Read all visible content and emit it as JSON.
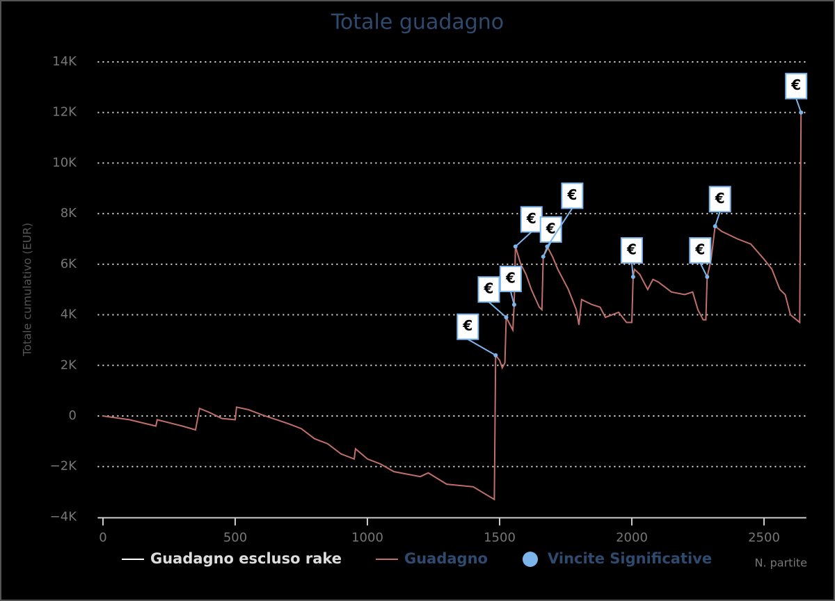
{
  "chart_data": {
    "type": "line",
    "title": "Totale guadagno",
    "x_label": "N. partite",
    "y_label": "Totale cumulativo (EUR)",
    "xlim": [
      -20,
      2660
    ],
    "xticks": [
      0,
      500,
      1000,
      1500,
      2000,
      2500
    ],
    "ylim": [
      -4000,
      14000
    ],
    "yticks": [
      {
        "value": -4000,
        "label": "−4K"
      },
      {
        "value": -2000,
        "label": "−2K"
      },
      0,
      {
        "value": 2000,
        "label": "2K"
      },
      {
        "value": 4000,
        "label": "4K"
      },
      {
        "value": 6000,
        "label": "6K"
      },
      {
        "value": 8000,
        "label": "8K"
      },
      {
        "value": 10000,
        "label": "10K"
      },
      {
        "value": 12000,
        "label": "12K"
      },
      {
        "value": 14000,
        "label": "14K"
      }
    ],
    "grid": true,
    "flag_label": "€",
    "series": [
      {
        "name": "Guadagno escluso rake",
        "color": "#ffffff"
      },
      {
        "name": "Guadagno",
        "color": "#c0706a",
        "x": [
          0,
          100,
          200,
          205,
          300,
          350,
          365,
          400,
          450,
          500,
          505,
          550,
          600,
          700,
          750,
          800,
          850,
          900,
          950,
          955,
          1000,
          1050,
          1100,
          1200,
          1230,
          1300,
          1400,
          1480,
          1485,
          1500,
          1510,
          1520,
          1525,
          1540,
          1550,
          1555,
          1560,
          1580,
          1600,
          1620,
          1650,
          1660,
          1665,
          1680,
          1700,
          1720,
          1760,
          1790,
          1800,
          1810,
          1850,
          1880,
          1900,
          1950,
          1980,
          2000,
          2005,
          2010,
          2030,
          2060,
          2080,
          2100,
          2150,
          2200,
          2230,
          2250,
          2270,
          2280,
          2285,
          2300,
          2315,
          2340,
          2400,
          2450,
          2500,
          2530,
          2560,
          2580,
          2600,
          2635,
          2640
        ],
        "values": [
          0,
          -150,
          -400,
          -150,
          -400,
          -550,
          300,
          150,
          -100,
          -150,
          350,
          250,
          50,
          -300,
          -500,
          -900,
          -1100,
          -1500,
          -1700,
          -1300,
          -1700,
          -1900,
          -2200,
          -2400,
          -2250,
          -2700,
          -2800,
          -3300,
          2400,
          2200,
          1900,
          2100,
          3900,
          3600,
          3400,
          4400,
          6700,
          6000,
          5600,
          5000,
          4300,
          4200,
          6300,
          6700,
          6300,
          5800,
          5000,
          4200,
          3600,
          4600,
          4400,
          4300,
          3900,
          4100,
          3700,
          3700,
          5500,
          5800,
          5600,
          5000,
          5400,
          5300,
          4900,
          4800,
          4900,
          4200,
          3800,
          3800,
          5500,
          6200,
          7500,
          7300,
          7000,
          6800,
          6200,
          5800,
          5000,
          4800,
          4000,
          3700,
          12000
        ]
      },
      {
        "name": "Vincite Significative",
        "color": "#7cb5ec",
        "type": "scatter",
        "x": [
          1485,
          1525,
          1555,
          1560,
          1665,
          1680,
          2005,
          2285,
          2315,
          2640
        ],
        "values": [
          2400,
          3900,
          4400,
          6700,
          6300,
          6700,
          5500,
          5500,
          7500,
          12000
        ]
      }
    ]
  }
}
